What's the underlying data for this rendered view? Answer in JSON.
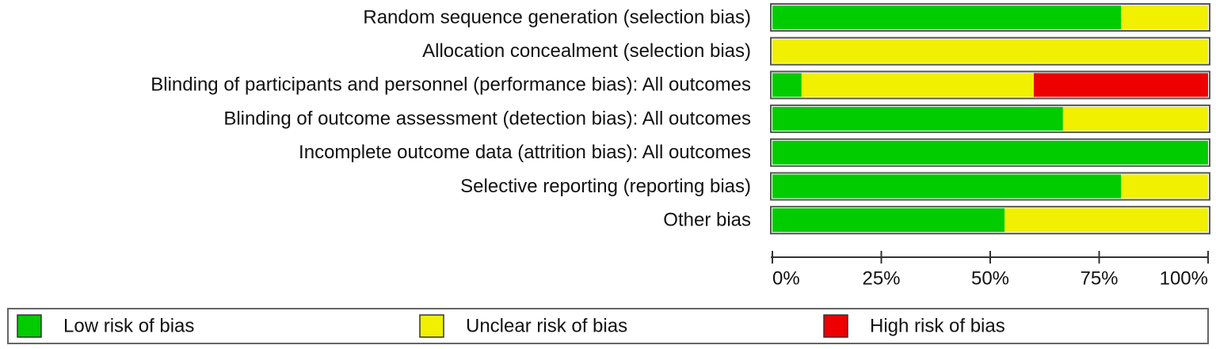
{
  "chart_data": {
    "type": "stacked-bar-horizontal",
    "categories": [
      "Random sequence generation (selection bias)",
      "Allocation concealment (selection bias)",
      "Blinding of participants and personnel (performance bias): All outcomes",
      "Blinding of outcome assessment (detection bias): All outcomes",
      "Incomplete outcome data (attrition bias): All outcomes",
      "Selective reporting (reporting bias)",
      "Other bias"
    ],
    "series": [
      {
        "name": "Low risk of bias",
        "color": "#00cc00",
        "values": [
          80,
          0,
          6.7,
          66.7,
          100,
          80,
          53.3
        ]
      },
      {
        "name": "Unclear risk of bias",
        "color": "#f0f000",
        "values": [
          20,
          100,
          53.3,
          33.3,
          0,
          20,
          46.7
        ]
      },
      {
        "name": "High risk of bias",
        "color": "#ee0000",
        "values": [
          0,
          0,
          40,
          0,
          0,
          0,
          0
        ]
      }
    ],
    "xlim": [
      0,
      100
    ],
    "xticks": [
      {
        "value": 0,
        "label": "0%"
      },
      {
        "value": 25,
        "label": "25%"
      },
      {
        "value": 50,
        "label": "50%"
      },
      {
        "value": 75,
        "label": "75%"
      },
      {
        "value": 100,
        "label": "100%"
      }
    ]
  }
}
